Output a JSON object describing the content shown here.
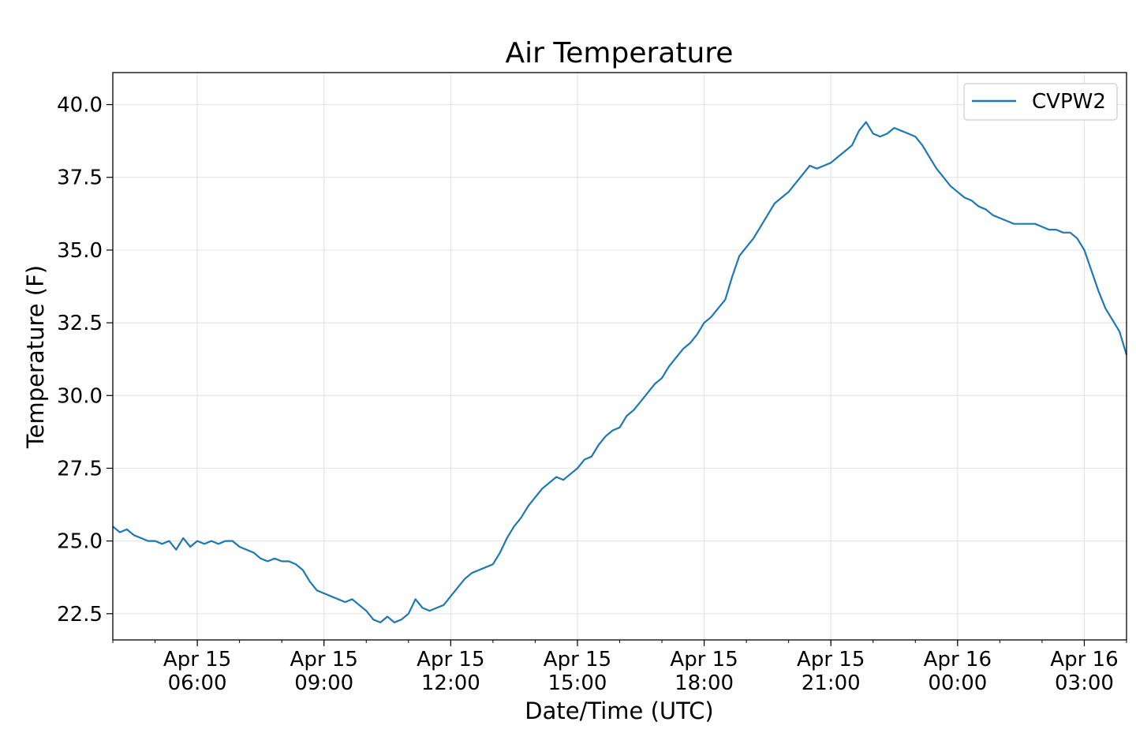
{
  "chart_data": {
    "type": "line",
    "title": "Air Temperature",
    "xlabel": "Date/Time (UTC)",
    "ylabel": "Temperature (F)",
    "ylim": [
      21.6,
      41.1
    ],
    "xlim": [
      "2024-04-15 04:00",
      "2024-04-16 04:00"
    ],
    "grid": true,
    "legend_position": "top-right",
    "y_ticks": [
      "22.5",
      "25.0",
      "27.5",
      "30.0",
      "32.5",
      "35.0",
      "37.5",
      "40.0"
    ],
    "x_ticks": [
      {
        "at": "2024-04-15 06:00",
        "line1": "Apr 15",
        "line2": "06:00"
      },
      {
        "at": "2024-04-15 09:00",
        "line1": "Apr 15",
        "line2": "09:00"
      },
      {
        "at": "2024-04-15 12:00",
        "line1": "Apr 15",
        "line2": "12:00"
      },
      {
        "at": "2024-04-15 15:00",
        "line1": "Apr 15",
        "line2": "15:00"
      },
      {
        "at": "2024-04-15 18:00",
        "line1": "Apr 15",
        "line2": "18:00"
      },
      {
        "at": "2024-04-15 21:00",
        "line1": "Apr 15",
        "line2": "21:00"
      },
      {
        "at": "2024-04-16 00:00",
        "line1": "Apr 16",
        "line2": "00:00"
      },
      {
        "at": "2024-04-16 03:00",
        "line1": "Apr 16",
        "line2": "03:00"
      }
    ],
    "series": [
      {
        "name": "CVPW2",
        "color": "#1f77b4",
        "x": [
          "2024-04-15 04:00",
          "2024-04-15 04:10",
          "2024-04-15 04:20",
          "2024-04-15 04:30",
          "2024-04-15 04:40",
          "2024-04-15 04:50",
          "2024-04-15 05:00",
          "2024-04-15 05:10",
          "2024-04-15 05:20",
          "2024-04-15 05:30",
          "2024-04-15 05:40",
          "2024-04-15 05:50",
          "2024-04-15 06:00",
          "2024-04-15 06:10",
          "2024-04-15 06:20",
          "2024-04-15 06:30",
          "2024-04-15 06:40",
          "2024-04-15 06:50",
          "2024-04-15 07:00",
          "2024-04-15 07:10",
          "2024-04-15 07:20",
          "2024-04-15 07:30",
          "2024-04-15 07:40",
          "2024-04-15 07:50",
          "2024-04-15 08:00",
          "2024-04-15 08:10",
          "2024-04-15 08:20",
          "2024-04-15 08:30",
          "2024-04-15 08:40",
          "2024-04-15 08:50",
          "2024-04-15 09:00",
          "2024-04-15 09:10",
          "2024-04-15 09:20",
          "2024-04-15 09:30",
          "2024-04-15 09:40",
          "2024-04-15 09:50",
          "2024-04-15 10:00",
          "2024-04-15 10:10",
          "2024-04-15 10:20",
          "2024-04-15 10:30",
          "2024-04-15 10:40",
          "2024-04-15 10:50",
          "2024-04-15 11:00",
          "2024-04-15 11:10",
          "2024-04-15 11:20",
          "2024-04-15 11:30",
          "2024-04-15 11:40",
          "2024-04-15 11:50",
          "2024-04-15 12:00",
          "2024-04-15 12:10",
          "2024-04-15 12:20",
          "2024-04-15 12:30",
          "2024-04-15 12:40",
          "2024-04-15 12:50",
          "2024-04-15 13:00",
          "2024-04-15 13:10",
          "2024-04-15 13:20",
          "2024-04-15 13:30",
          "2024-04-15 13:40",
          "2024-04-15 13:50",
          "2024-04-15 14:00",
          "2024-04-15 14:10",
          "2024-04-15 14:20",
          "2024-04-15 14:30",
          "2024-04-15 14:40",
          "2024-04-15 14:50",
          "2024-04-15 15:00",
          "2024-04-15 15:10",
          "2024-04-15 15:20",
          "2024-04-15 15:30",
          "2024-04-15 15:40",
          "2024-04-15 15:50",
          "2024-04-15 16:00",
          "2024-04-15 16:10",
          "2024-04-15 16:20",
          "2024-04-15 16:30",
          "2024-04-15 16:40",
          "2024-04-15 16:50",
          "2024-04-15 17:00",
          "2024-04-15 17:10",
          "2024-04-15 17:20",
          "2024-04-15 17:30",
          "2024-04-15 17:40",
          "2024-04-15 17:50",
          "2024-04-15 18:00",
          "2024-04-15 18:10",
          "2024-04-15 18:20",
          "2024-04-15 18:30",
          "2024-04-15 18:40",
          "2024-04-15 18:50",
          "2024-04-15 19:00",
          "2024-04-15 19:10",
          "2024-04-15 19:20",
          "2024-04-15 19:30",
          "2024-04-15 19:40",
          "2024-04-15 19:50",
          "2024-04-15 20:00",
          "2024-04-15 20:10",
          "2024-04-15 20:20",
          "2024-04-15 20:30",
          "2024-04-15 20:40",
          "2024-04-15 20:50",
          "2024-04-15 21:00",
          "2024-04-15 21:10",
          "2024-04-15 21:20",
          "2024-04-15 21:30",
          "2024-04-15 21:40",
          "2024-04-15 21:50",
          "2024-04-15 22:00",
          "2024-04-15 22:10",
          "2024-04-15 22:20",
          "2024-04-15 22:30",
          "2024-04-15 22:40",
          "2024-04-15 22:50",
          "2024-04-15 23:00",
          "2024-04-15 23:10",
          "2024-04-15 23:20",
          "2024-04-15 23:30",
          "2024-04-15 23:40",
          "2024-04-15 23:50",
          "2024-04-16 00:00",
          "2024-04-16 00:10",
          "2024-04-16 00:20",
          "2024-04-16 00:30",
          "2024-04-16 00:40",
          "2024-04-16 00:50",
          "2024-04-16 01:00",
          "2024-04-16 01:10",
          "2024-04-16 01:20",
          "2024-04-16 01:30",
          "2024-04-16 01:40",
          "2024-04-16 01:50",
          "2024-04-16 02:00",
          "2024-04-16 02:10",
          "2024-04-16 02:20",
          "2024-04-16 02:30",
          "2024-04-16 02:40",
          "2024-04-16 02:50",
          "2024-04-16 03:00",
          "2024-04-16 03:10",
          "2024-04-16 03:20",
          "2024-04-16 03:30",
          "2024-04-16 03:40",
          "2024-04-16 03:50",
          "2024-04-16 04:00"
        ],
        "values": [
          25.5,
          25.3,
          25.4,
          25.2,
          25.1,
          25.0,
          25.0,
          24.9,
          25.0,
          24.7,
          25.1,
          24.8,
          25.0,
          24.9,
          25.0,
          24.9,
          25.0,
          25.0,
          24.8,
          24.7,
          24.6,
          24.4,
          24.3,
          24.4,
          24.3,
          24.3,
          24.2,
          24.0,
          23.6,
          23.3,
          23.2,
          23.1,
          23.0,
          22.9,
          23.0,
          22.8,
          22.6,
          22.3,
          22.2,
          22.4,
          22.2,
          22.3,
          22.5,
          23.0,
          22.7,
          22.6,
          22.7,
          22.8,
          23.1,
          23.4,
          23.7,
          23.9,
          24.0,
          24.1,
          24.2,
          24.6,
          25.1,
          25.5,
          25.8,
          26.2,
          26.5,
          26.8,
          27.0,
          27.2,
          27.1,
          27.3,
          27.5,
          27.8,
          27.9,
          28.3,
          28.6,
          28.8,
          28.9,
          29.3,
          29.5,
          29.8,
          30.1,
          30.4,
          30.6,
          31.0,
          31.3,
          31.6,
          31.8,
          32.1,
          32.5,
          32.7,
          33.0,
          33.3,
          34.1,
          34.8,
          35.1,
          35.4,
          35.8,
          36.2,
          36.6,
          36.8,
          37.0,
          37.3,
          37.6,
          37.9,
          37.8,
          37.9,
          38.0,
          38.2,
          38.4,
          38.6,
          39.1,
          39.4,
          39.0,
          38.9,
          39.0,
          39.2,
          39.1,
          39.0,
          38.9,
          38.6,
          38.2,
          37.8,
          37.5,
          37.2,
          37.0,
          36.8,
          36.7,
          36.5,
          36.4,
          36.2,
          36.1,
          36.0,
          35.9,
          35.9,
          35.9,
          35.9,
          35.8,
          35.7,
          35.7,
          35.6,
          35.6,
          35.4,
          35.0,
          34.3,
          33.6,
          33.0,
          32.6,
          32.2,
          31.4
        ]
      }
    ]
  }
}
